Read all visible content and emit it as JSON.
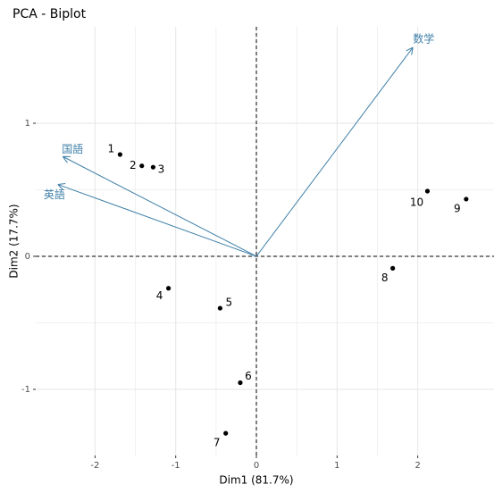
{
  "chart_data": {
    "type": "biplot",
    "title": "PCA - Biplot",
    "x_label": "Dim1 (81.7%)",
    "y_label": "Dim2 (17.7%)",
    "points": {
      "labels": [
        "1",
        "2",
        "3",
        "4",
        "5",
        "6",
        "7",
        "8",
        "9",
        "10"
      ],
      "x": [
        -1.69,
        -1.42,
        -1.28,
        -1.09,
        -0.45,
        -0.2,
        -0.38,
        1.69,
        2.6,
        2.12
      ],
      "y": [
        0.765,
        0.68,
        0.67,
        -0.24,
        -0.39,
        -0.95,
        -1.33,
        -0.09,
        0.43,
        0.49
      ],
      "color": "#000000"
    },
    "vectors": {
      "names": [
        "数学",
        "国語",
        "英語"
      ],
      "x": [
        1.94,
        -2.4,
        -2.46
      ],
      "y": [
        1.57,
        0.75,
        0.54
      ],
      "color": "#3f7fa8"
    },
    "xlim": [
      -2.735,
      2.945
    ],
    "ylim": [
      -1.497,
      1.725
    ],
    "xticks": [
      -2,
      -1,
      0,
      1,
      2
    ],
    "yticks": [
      -1,
      0,
      1
    ],
    "grid": true
  }
}
